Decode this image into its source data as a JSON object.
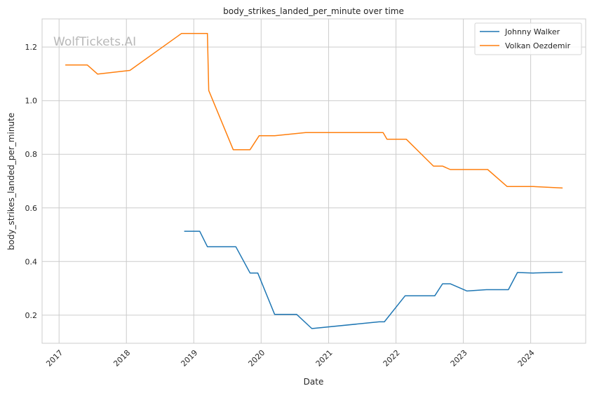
{
  "chart_data": {
    "type": "line",
    "title": "body_strikes_landed_per_minute over time",
    "xlabel": "Date",
    "ylabel": "body_strikes_landed_per_minute",
    "watermark": "WolfTickets.AI",
    "grid": true,
    "legend_position": "top-right",
    "xlim": [
      "2016-10-01",
      "2024-10-25"
    ],
    "ylim": [
      0.095,
      1.305
    ],
    "x_ticks": [
      "2017",
      "2018",
      "2019",
      "2020",
      "2021",
      "2022",
      "2023",
      "2024"
    ],
    "y_ticks": [
      "0.2",
      "0.4",
      "0.6",
      "0.8",
      "1.0",
      "1.2"
    ],
    "series": [
      {
        "name": "Johnny Walker",
        "color": "#1f77b4",
        "points": [
          [
            "2018-11-10",
            0.513
          ],
          [
            "2019-02-02",
            0.513
          ],
          [
            "2019-03-16",
            0.455
          ],
          [
            "2019-08-17",
            0.455
          ],
          [
            "2019-11-02",
            0.357
          ],
          [
            "2019-12-14",
            0.357
          ],
          [
            "2020-03-14",
            0.203
          ],
          [
            "2020-07-11",
            0.203
          ],
          [
            "2020-10-02",
            0.15
          ],
          [
            "2021-10-02",
            0.175
          ],
          [
            "2021-10-30",
            0.175
          ],
          [
            "2022-02-19",
            0.272
          ],
          [
            "2022-07-30",
            0.272
          ],
          [
            "2022-09-10",
            0.317
          ],
          [
            "2022-10-22",
            0.317
          ],
          [
            "2023-01-21",
            0.29
          ],
          [
            "2023-05-06",
            0.295
          ],
          [
            "2023-09-02",
            0.295
          ],
          [
            "2023-10-21",
            0.359
          ],
          [
            "2024-01-13",
            0.357
          ],
          [
            "2024-06-22",
            0.36
          ]
        ]
      },
      {
        "name": "Volkan Oezdemir",
        "color": "#ff7f0e",
        "points": [
          [
            "2017-02-04",
            1.133
          ],
          [
            "2017-06-03",
            1.133
          ],
          [
            "2017-07-29",
            1.099
          ],
          [
            "2018-01-20",
            1.113
          ],
          [
            "2018-10-27",
            1.251
          ],
          [
            "2019-03-16",
            1.251
          ],
          [
            "2019-03-23",
            1.038
          ],
          [
            "2019-08-03",
            0.817
          ],
          [
            "2019-11-02",
            0.817
          ],
          [
            "2019-12-21",
            0.869
          ],
          [
            "2020-03-14",
            0.869
          ],
          [
            "2020-08-29",
            0.881
          ],
          [
            "2021-10-23",
            0.881
          ],
          [
            "2021-11-13",
            0.856
          ],
          [
            "2022-02-26",
            0.856
          ],
          [
            "2022-07-23",
            0.756
          ],
          [
            "2022-09-10",
            0.756
          ],
          [
            "2022-10-22",
            0.743
          ],
          [
            "2023-05-13",
            0.743
          ],
          [
            "2023-08-26",
            0.68
          ],
          [
            "2024-01-13",
            0.68
          ],
          [
            "2024-06-22",
            0.674
          ]
        ]
      }
    ]
  }
}
